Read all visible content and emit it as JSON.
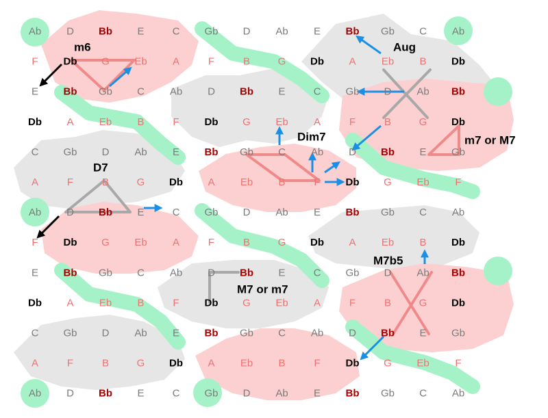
{
  "grid": {
    "rows": [
      [
        "Ab",
        "D",
        "Bb",
        "E",
        "C",
        "Gb",
        "D",
        "Ab",
        "E",
        "Bb",
        "Gb",
        "C",
        "Ab"
      ],
      [
        "F",
        "Db",
        "G",
        "Eb",
        "A",
        "F",
        "B",
        "G",
        "Db",
        "A",
        "Eb",
        "B",
        "Db"
      ],
      [
        "E",
        "Bb",
        "Gb",
        "C",
        "Ab",
        "D",
        "Bb",
        "E",
        "C",
        "Gb",
        "D",
        "Ab",
        "Bb"
      ],
      [
        "Db",
        "A",
        "Eb",
        "B",
        "F",
        "Db",
        "G",
        "Eb",
        "A",
        "F",
        "B",
        "G",
        "Db"
      ],
      [
        "C",
        "Gb",
        "D",
        "Ab",
        "E",
        "Bb",
        "Gb",
        "C",
        "Ab",
        "D",
        "Bb",
        "E",
        "Gb"
      ],
      [
        "A",
        "F",
        "B",
        "G",
        "Db",
        "A",
        "Eb",
        "B",
        "F",
        "Db",
        "G",
        "Eb",
        "F"
      ],
      [
        "Ab",
        "D",
        "Bb",
        "E",
        "C",
        "Gb",
        "D",
        "Ab",
        "E",
        "Bb",
        "Gb",
        "C",
        "Ab"
      ],
      [
        "F",
        "Db",
        "G",
        "Eb",
        "A",
        "F",
        "B",
        "G",
        "Db",
        "A",
        "Eb",
        "B",
        "Db"
      ],
      [
        "E",
        "Bb",
        "Gb",
        "C",
        "Ab",
        "D",
        "Bb",
        "E",
        "C",
        "Gb",
        "D",
        "Ab",
        "Bb"
      ],
      [
        "Db",
        "A",
        "Eb",
        "B",
        "F",
        "Db",
        "G",
        "Eb",
        "A",
        "F",
        "B",
        "G",
        "Db"
      ],
      [
        "C",
        "Gb",
        "D",
        "Ab",
        "E",
        "Bb",
        "Gb",
        "C",
        "Ab",
        "D",
        "Bb",
        "E",
        "Gb"
      ],
      [
        "A",
        "F",
        "B",
        "G",
        "Db",
        "A",
        "Eb",
        "B",
        "F",
        "Db",
        "G",
        "Eb",
        "F"
      ],
      [
        "Ab",
        "D",
        "Bb",
        "E",
        "C",
        "Gb",
        "D",
        "Ab",
        "E",
        "Bb",
        "Gb",
        "C",
        "Ab"
      ]
    ],
    "note_colors": {
      "C": "#7a7a7a",
      "D": "#7a7a7a",
      "E": "#7a7a7a",
      "Gb": "#7a7a7a",
      "Ab": "#7a7a7a",
      "Bb": "#a80000",
      "F": "#f07070",
      "G": "#f07070",
      "A": "#f07070",
      "B": "#f07070",
      "Db": "#000000",
      "Eb": "#f07070"
    },
    "bold_notes": [
      "Bb",
      "Db"
    ]
  },
  "labels": {
    "m6": "m6",
    "aug": "Aug",
    "dim7": "Dim7",
    "m7_or_M7": "m7 or M7",
    "d7": "D7",
    "m7b5": "M7b5",
    "M7_or_m7": "M7 or m7"
  },
  "colors": {
    "pink_region": "#fcd0d0",
    "gray_region": "#e6e6e6",
    "green_band": "#a6f2c8",
    "pink_line": "#f08a8a",
    "gray_line": "#a8a8a8",
    "blue_arrow": "#1a8fe6",
    "black_arrow": "#000000"
  }
}
